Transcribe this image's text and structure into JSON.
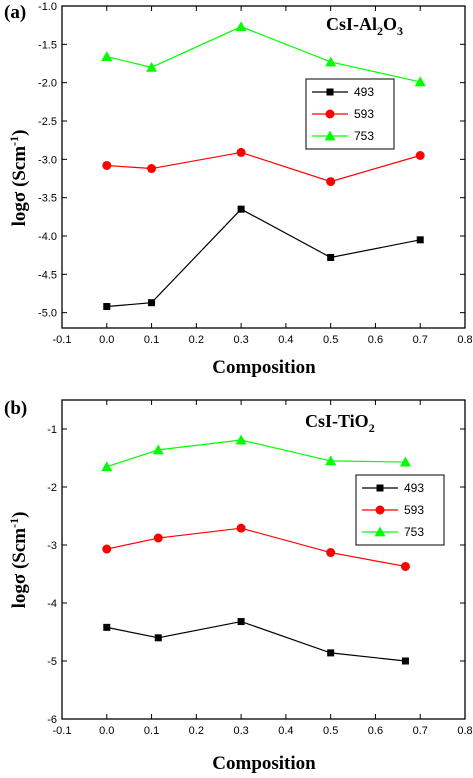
{
  "chart_data": [
    {
      "type": "line",
      "panel_label": "(a)",
      "title": "CsI-Al",
      "title_sub": "2",
      "title_mid": "O",
      "title_sub2": "3",
      "xlabel": "Composition",
      "ylabel": "logσ (Scm",
      "ylabel_sup": "-1",
      "ylabel_close": ")",
      "xlim": [
        -0.1,
        0.8
      ],
      "ylim": [
        -5.2,
        -1.0
      ],
      "x_ticks": [
        -0.1,
        0.0,
        0.1,
        0.2,
        0.3,
        0.4,
        0.5,
        0.6,
        0.7,
        0.8
      ],
      "x_tick_labels": [
        "-0.1",
        "0.0",
        "0.1",
        "0.2",
        "0.3",
        "0.4",
        "0.5",
        "0.6",
        "0.7",
        "0.8"
      ],
      "y_ticks": [
        -5.0,
        -4.5,
        -4.0,
        -3.5,
        -3.0,
        -2.5,
        -2.0,
        -1.5,
        -1.0
      ],
      "y_tick_labels": [
        "-5.0",
        "-4.5",
        "-4.0",
        "-3.5",
        "-3.0",
        "-2.5",
        "-2.0",
        "-1.5",
        "-1.0"
      ],
      "grid": false,
      "legend_position": "right",
      "series": [
        {
          "name": "493",
          "color": "#000000",
          "marker": "square",
          "x": [
            0.0,
            0.1,
            0.3,
            0.5,
            0.7
          ],
          "y": [
            -4.92,
            -4.87,
            -3.65,
            -4.28,
            -4.05
          ]
        },
        {
          "name": "593",
          "color": "#ff0000",
          "marker": "circle",
          "x": [
            0.0,
            0.1,
            0.3,
            0.5,
            0.7
          ],
          "y": [
            -3.08,
            -3.12,
            -2.91,
            -3.29,
            -2.95
          ]
        },
        {
          "name": "753",
          "color": "#00ff00",
          "marker": "triangle",
          "x": [
            0.0,
            0.1,
            0.3,
            0.5,
            0.7
          ],
          "y": [
            -1.66,
            -1.8,
            -1.27,
            -1.73,
            -1.99
          ]
        }
      ]
    },
    {
      "type": "line",
      "panel_label": "(b)",
      "title": "CsI-TiO",
      "title_sub": "2",
      "title_mid": "",
      "title_sub2": "",
      "xlabel": "Composition",
      "ylabel": "logσ (Scm",
      "ylabel_sup": "-1",
      "ylabel_close": ")",
      "xlim": [
        -0.1,
        0.8
      ],
      "ylim": [
        -6.0,
        -0.5
      ],
      "x_ticks": [
        -0.1,
        0.0,
        0.1,
        0.2,
        0.3,
        0.4,
        0.5,
        0.6,
        0.7,
        0.8
      ],
      "x_tick_labels": [
        "-0.1",
        "0.0",
        "0.1",
        "0.2",
        "0.3",
        "0.4",
        "0.5",
        "0.6",
        "0.7",
        "0.8"
      ],
      "y_ticks": [
        -6,
        -5,
        -4,
        -3,
        -2,
        -1
      ],
      "y_tick_labels": [
        "-6",
        "-5",
        "-4",
        "-3",
        "-2",
        "-1"
      ],
      "grid": false,
      "legend_position": "right",
      "series": [
        {
          "name": "493",
          "color": "#000000",
          "marker": "square",
          "x": [
            0.0,
            0.115,
            0.3,
            0.5,
            0.667
          ],
          "y": [
            -4.42,
            -4.6,
            -4.32,
            -4.86,
            -5.0
          ]
        },
        {
          "name": "593",
          "color": "#ff0000",
          "marker": "circle",
          "x": [
            0.0,
            0.115,
            0.3,
            0.5,
            0.667
          ],
          "y": [
            -3.07,
            -2.88,
            -2.71,
            -3.13,
            -3.37
          ]
        },
        {
          "name": "753",
          "color": "#00ff00",
          "marker": "triangle",
          "x": [
            0.0,
            0.115,
            0.3,
            0.5,
            0.667
          ],
          "y": [
            -1.65,
            -1.36,
            -1.19,
            -1.55,
            -1.57
          ]
        }
      ]
    }
  ]
}
